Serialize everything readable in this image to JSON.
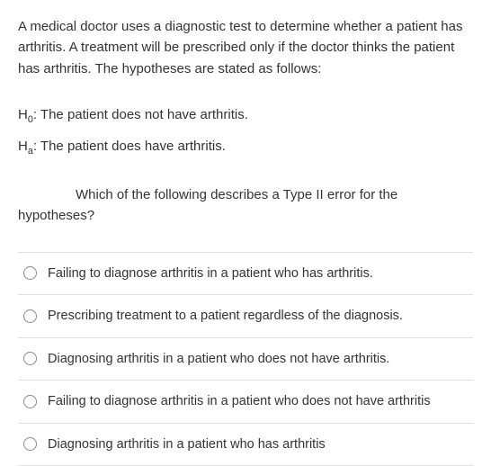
{
  "intro": "A medical doctor uses a diagnostic test to determine whether a patient has arthritis. A treatment will be prescribed only if the doctor thinks the patient has arthritis. The hypotheses are stated as follows:",
  "hypotheses": {
    "h0_label_pre": "H",
    "h0_sub": "0",
    "h0_text": ": The patient does not have arthritis.",
    "ha_label_pre": "H",
    "ha_sub": "a",
    "ha_text": ": The patient does have arthritis."
  },
  "question_part1": "Which of the following describes a Type II error for the",
  "question_part2": "hypotheses?",
  "options": [
    "Failing to diagnose arthritis in a patient who has arthritis.",
    "Prescribing treatment to a patient regardless of the diagnosis.",
    "Diagnosing arthritis in a patient who does not have arthritis.",
    "Failing to diagnose arthritis in a patient who does not have arthritis",
    "Diagnosing arthritis in a patient who has arthritis"
  ],
  "colors": {
    "text": "#333333",
    "divider": "#e0e0e0",
    "radio_border": "#888888",
    "background": "#ffffff"
  }
}
